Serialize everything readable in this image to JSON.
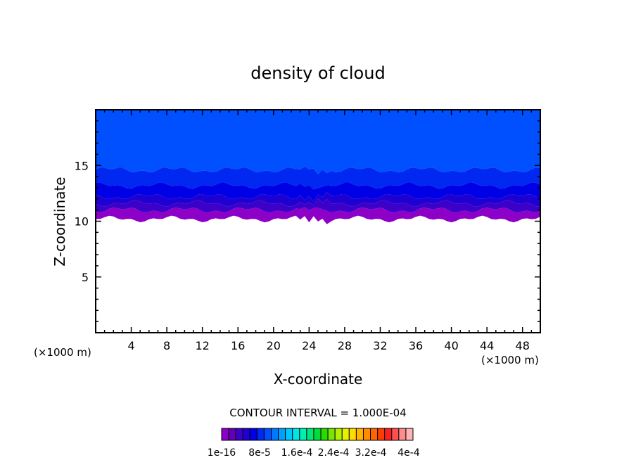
{
  "chart_data": {
    "type": "heatmap",
    "title": "density of cloud",
    "xlabel": "X-coordinate",
    "ylabel": "Z-coordinate",
    "x_unit_left": "(×1000 m)",
    "x_unit_right": "(×1000 m)",
    "xlim": [
      0,
      50
    ],
    "ylim": [
      0,
      20
    ],
    "xticks": [
      4,
      8,
      12,
      16,
      20,
      24,
      28,
      32,
      36,
      40,
      44,
      48
    ],
    "yticks": [
      5,
      10,
      15
    ],
    "contour_interval_text": "CONTOUR INTERVAL = 1.000E-04",
    "colorbar_labels": [
      "1e-16",
      "8e-5",
      "1.6e-4",
      "2.4e-4",
      "3.2e-4",
      "4e-4"
    ],
    "colorbar_colors": [
      "#8c00c8",
      "#6400b4",
      "#3c00c8",
      "#1e00d2",
      "#0000e6",
      "#0028f0",
      "#0050ff",
      "#0078ff",
      "#00a0ff",
      "#00c8ff",
      "#00e6e6",
      "#00f0b4",
      "#00e678",
      "#00dc3c",
      "#28dc00",
      "#78e600",
      "#b4f000",
      "#e6f000",
      "#ffdc00",
      "#ffb400",
      "#ff8c00",
      "#ff6400",
      "#ff3c00",
      "#ff1e1e",
      "#ff5050",
      "#ff8c8c",
      "#ffb4b4"
    ],
    "cloud_layers": [
      {
        "level": "1e-16",
        "color": "#0050ff",
        "top": 20,
        "base": 14.6
      },
      {
        "level": "2e-5",
        "color": "#0028f0",
        "top": 14.6,
        "base": 13.2
      },
      {
        "level": "4e-5",
        "color": "#0000e6",
        "top": 13.2,
        "base": 12.2
      },
      {
        "level": "6e-5",
        "color": "#1e00d2",
        "top": 12.2,
        "base": 11.6
      },
      {
        "level": "8e-5",
        "color": "#3c00c8",
        "top": 11.6,
        "base": 11.0
      },
      {
        "level": "1e-4",
        "color": "#8c00c8",
        "top": 11.0,
        "base": 10.2
      }
    ]
  }
}
